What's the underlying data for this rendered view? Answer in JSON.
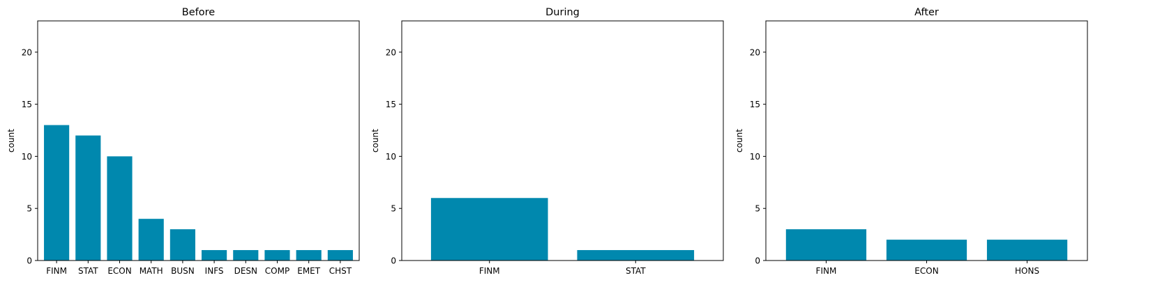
{
  "chart_data": [
    {
      "type": "bar",
      "title": "Before",
      "ylabel": "count",
      "ylim": [
        0,
        23
      ],
      "yticks": [
        0,
        5,
        10,
        15,
        20
      ],
      "grid": false,
      "categories": [
        "FINM",
        "STAT",
        "ECON",
        "MATH",
        "BUSN",
        "INFS",
        "DESN",
        "COMP",
        "EMET",
        "CHST"
      ],
      "values": [
        13,
        12,
        10,
        4,
        3,
        1,
        1,
        1,
        1,
        1
      ],
      "color": "#0088ae"
    },
    {
      "type": "bar",
      "title": "During",
      "ylabel": "count",
      "ylim": [
        0,
        23
      ],
      "yticks": [
        0,
        5,
        10,
        15,
        20
      ],
      "grid": false,
      "categories": [
        "FINM",
        "STAT"
      ],
      "values": [
        6,
        1
      ],
      "color": "#0088ae"
    },
    {
      "type": "bar",
      "title": "After",
      "ylabel": "count",
      "ylim": [
        0,
        23
      ],
      "yticks": [
        0,
        5,
        10,
        15,
        20
      ],
      "grid": false,
      "categories": [
        "FINM",
        "ECON",
        "HONS"
      ],
      "values": [
        3,
        2,
        2
      ],
      "color": "#0088ae"
    }
  ]
}
